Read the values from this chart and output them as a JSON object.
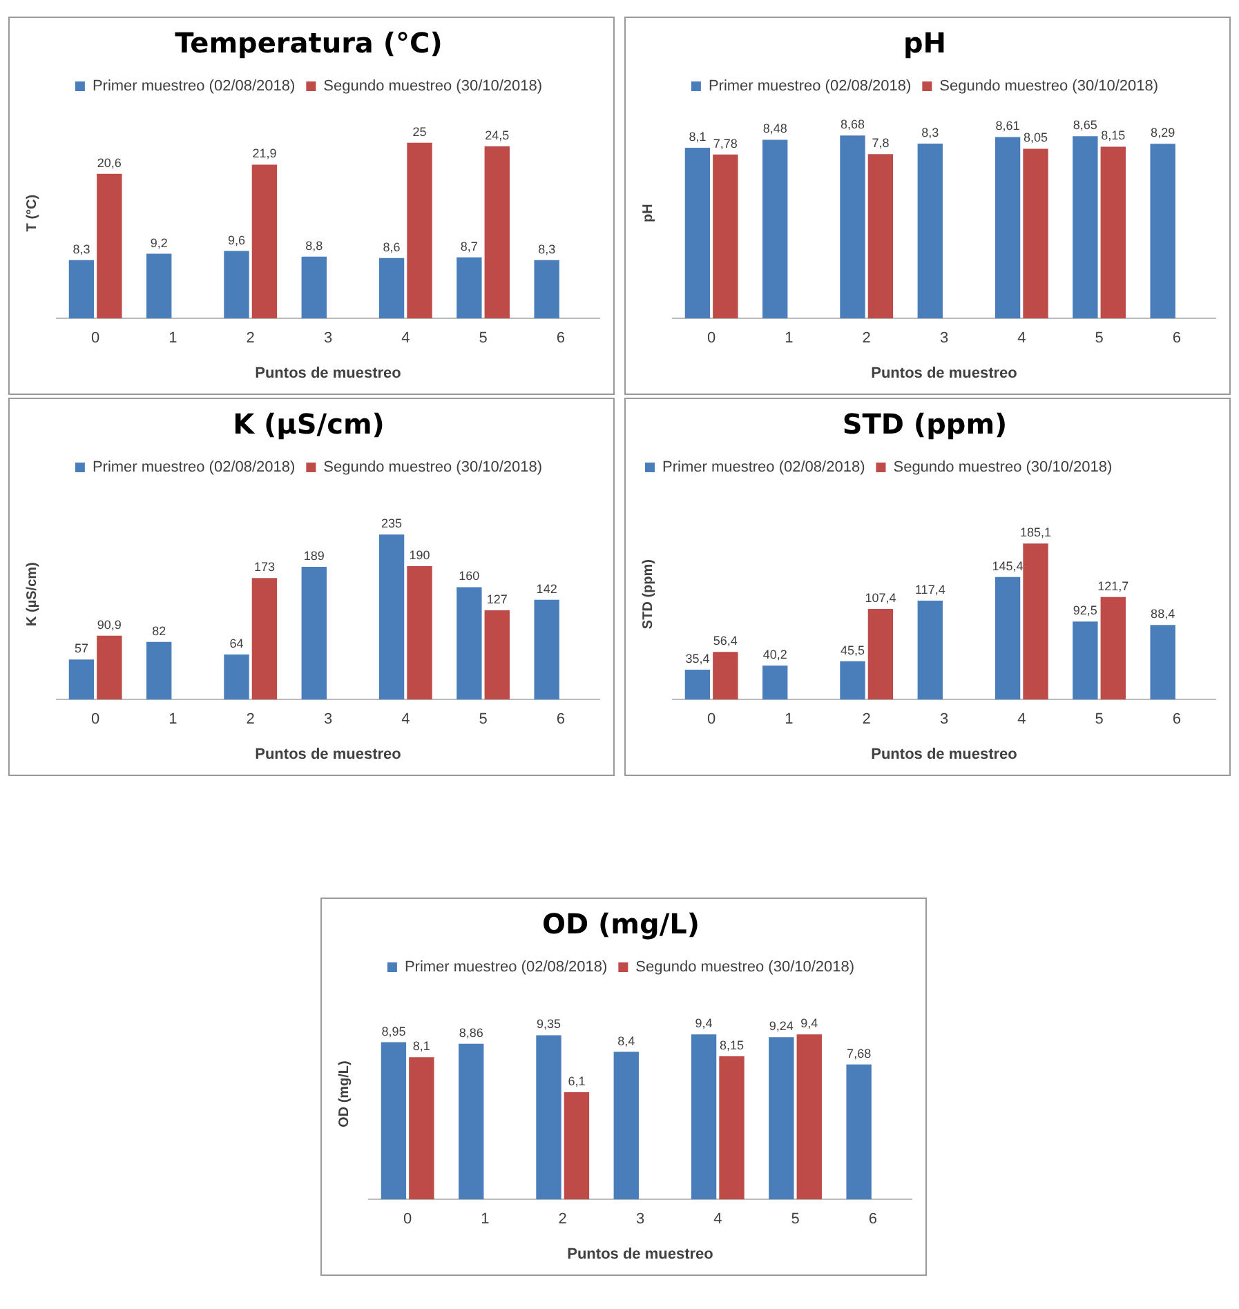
{
  "chart_data": [
    {
      "type": "bar",
      "title": "Temperatura (°C)",
      "xlabel": "Puntos de muestreo",
      "ylabel": "T (°C)",
      "categories": [
        "0",
        "1",
        "2",
        "3",
        "4",
        "5",
        "6"
      ],
      "legend": "top",
      "tick_labels": "x",
      "grid": false,
      "series": [
        {
          "name": "Primer muestreo (02/08/2018)",
          "color": "#4a7ebb",
          "values": [
            8.3,
            9.2,
            9.6,
            8.8,
            8.6,
            8.7,
            8.3
          ],
          "value_labels": [
            "8,3",
            "9,2",
            "9,6",
            "8,8",
            "8,6",
            "8,7",
            "8,3"
          ]
        },
        {
          "name": "Segundo muestreo (30/10/2018)",
          "color": "#be4b48",
          "values": [
            20.6,
            null,
            21.9,
            null,
            25,
            24.5,
            null
          ],
          "value_labels": [
            "20,6",
            null,
            "21,9",
            null,
            "25",
            "24,5",
            null
          ]
        }
      ]
    },
    {
      "type": "bar",
      "title": "pH",
      "xlabel": "Puntos de muestreo",
      "ylabel": "pH",
      "categories": [
        "0",
        "1",
        "2",
        "3",
        "4",
        "5",
        "6"
      ],
      "legend": "top",
      "tick_labels": "x",
      "grid": false,
      "series": [
        {
          "name": "Primer muestreo (02/08/2018)",
          "color": "#4a7ebb",
          "values": [
            8.1,
            8.48,
            8.68,
            8.3,
            8.61,
            8.65,
            8.29
          ],
          "value_labels": [
            "8,1",
            "8,48",
            "8,68",
            "8,3",
            "8,61",
            "8,65",
            "8,29"
          ]
        },
        {
          "name": "Segundo muestreo (30/10/2018)",
          "color": "#be4b48",
          "values": [
            7.78,
            null,
            7.8,
            null,
            8.05,
            8.15,
            null
          ],
          "value_labels": [
            "7,78",
            null,
            "7,8",
            null,
            "8,05",
            "8,15",
            null
          ]
        }
      ]
    },
    {
      "type": "bar",
      "title": "K (µS/cm)",
      "xlabel": "Puntos de muestreo",
      "ylabel": "K (µS/cm)",
      "categories": [
        "0",
        "1",
        "2",
        "3",
        "4",
        "5",
        "6"
      ],
      "legend": "top",
      "tick_labels": "x",
      "grid": false,
      "series": [
        {
          "name": "Primer muestreo (02/08/2018)",
          "color": "#4a7ebb",
          "values": [
            57,
            82,
            64,
            189,
            235,
            160,
            142
          ],
          "value_labels": [
            "57",
            "82",
            "64",
            "189",
            "235",
            "160",
            "142"
          ]
        },
        {
          "name": "Segundo muestreo (30/10/2018)",
          "color": "#be4b48",
          "values": [
            90.9,
            null,
            173,
            null,
            190,
            127,
            null
          ],
          "value_labels": [
            "90,9",
            null,
            "173",
            null,
            "190",
            "127",
            null
          ]
        }
      ]
    },
    {
      "type": "bar",
      "title": "STD (ppm)",
      "xlabel": "Puntos de muestreo",
      "ylabel": "STD (ppm)",
      "categories": [
        "0",
        "1",
        "2",
        "3",
        "4",
        "5",
        "6"
      ],
      "legend": "top left",
      "tick_labels": "x",
      "grid": false,
      "series": [
        {
          "name": "Primer muestreo (02/08/2018)",
          "color": "#4a7ebb",
          "values": [
            35.4,
            40.2,
            45.5,
            117.4,
            145.4,
            92.5,
            88.4
          ],
          "value_labels": [
            "35,4",
            "40,2",
            "45,5",
            "117,4",
            "145,4",
            "92,5",
            "88,4"
          ]
        },
        {
          "name": "Segundo muestreo (30/10/2018)",
          "color": "#be4b48",
          "values": [
            56.4,
            null,
            107.4,
            null,
            185.1,
            121.7,
            null
          ],
          "value_labels": [
            "56,4",
            null,
            "107,4",
            null,
            "185,1",
            "121,7",
            null
          ]
        }
      ]
    },
    {
      "type": "bar",
      "title": "OD (mg/L)",
      "xlabel": "Puntos de muestreo",
      "ylabel": "OD (mg/L)",
      "categories": [
        "0",
        "1",
        "2",
        "3",
        "4",
        "5",
        "6"
      ],
      "legend": "top",
      "tick_labels": "x",
      "grid": false,
      "series": [
        {
          "name": "Primer muestreo (02/08/2018)",
          "color": "#4a7ebb",
          "values": [
            8.95,
            8.86,
            9.35,
            8.4,
            9.4,
            9.24,
            7.68
          ],
          "value_labels": [
            "8,95",
            "8,86",
            "9,35",
            "8,4",
            "9,4",
            "9,24",
            "7,68"
          ]
        },
        {
          "name": "Segundo muestreo (30/10/2018)",
          "color": "#be4b48",
          "values": [
            8.1,
            null,
            6.1,
            null,
            8.15,
            9.4,
            null
          ],
          "value_labels": [
            "8,1",
            null,
            "6,1",
            null,
            "8,15",
            "9,4",
            null
          ]
        }
      ]
    }
  ]
}
